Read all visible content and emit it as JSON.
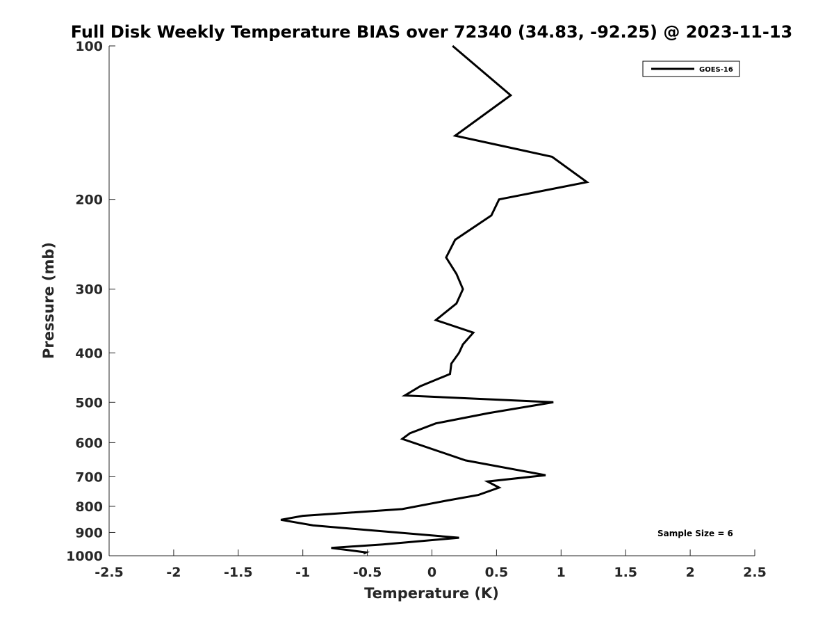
{
  "chart_data": {
    "type": "line",
    "title": "Full Disk Weekly Temperature BIAS over 72340 (34.83, -92.25) @ 2023-11-13",
    "xlabel": "Temperature (K)",
    "ylabel": "Pressure (mb)",
    "xlim": [
      -2.5,
      2.5
    ],
    "ylim": [
      100,
      1000
    ],
    "yscale": "log",
    "y_reversed": true,
    "xticks": [
      -2.5,
      -2,
      -1.5,
      -1,
      -0.5,
      0,
      0.5,
      1,
      1.5,
      2,
      2.5
    ],
    "xtick_labels": [
      "-2.5",
      "-2",
      "-1.5",
      "-1",
      "-0.5",
      "0",
      "0.5",
      "1",
      "1.5",
      "2",
      "2.5"
    ],
    "yticks": [
      100,
      200,
      300,
      400,
      500,
      600,
      700,
      800,
      900,
      1000
    ],
    "ytick_labels": [
      "100",
      "200",
      "300",
      "400",
      "500",
      "600",
      "700",
      "800",
      "900",
      "1000"
    ],
    "grid": false,
    "legend_position": "top-right",
    "annotation": "Sample Size = 6",
    "series": [
      {
        "name": "GOES-16",
        "color": "#000000",
        "points": [
          [
            0.16,
            100
          ],
          [
            0.61,
            125
          ],
          [
            0.18,
            150
          ],
          [
            0.93,
            165
          ],
          [
            1.2,
            185
          ],
          [
            0.52,
            200
          ],
          [
            0.46,
            215
          ],
          [
            0.18,
            240
          ],
          [
            0.11,
            260
          ],
          [
            0.19,
            280
          ],
          [
            0.24,
            300
          ],
          [
            0.19,
            320
          ],
          [
            0.03,
            345
          ],
          [
            0.32,
            365
          ],
          [
            0.24,
            385
          ],
          [
            0.21,
            400
          ],
          [
            0.15,
            420
          ],
          [
            0.14,
            440
          ],
          [
            -0.09,
            465
          ],
          [
            -0.21,
            485
          ],
          [
            0.94,
            500
          ],
          [
            0.44,
            525
          ],
          [
            0.03,
            550
          ],
          [
            -0.17,
            575
          ],
          [
            -0.23,
            590
          ],
          [
            0.26,
            650
          ],
          [
            0.88,
            695
          ],
          [
            0.43,
            715
          ],
          [
            0.52,
            735
          ],
          [
            0.36,
            760
          ],
          [
            0.11,
            780
          ],
          [
            -0.23,
            810
          ],
          [
            -1.0,
            835
          ],
          [
            -1.17,
            850
          ],
          [
            -0.92,
            872
          ],
          [
            0.21,
            922
          ],
          [
            -0.38,
            950
          ],
          [
            -0.78,
            965
          ],
          [
            -0.51,
            985
          ],
          [
            -0.53,
            990
          ],
          [
            -0.51,
            985
          ]
        ]
      }
    ]
  }
}
